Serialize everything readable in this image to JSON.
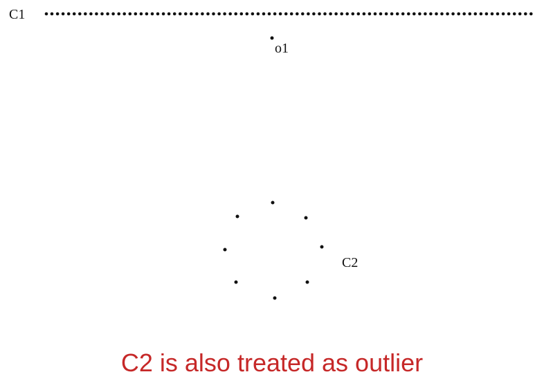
{
  "labels": {
    "c1": "C1",
    "o1": "o1",
    "c2": "C2"
  },
  "caption": "C2 is also treated as outlier",
  "colors": {
    "points": "#111111",
    "text": "#111111",
    "caption": "#c62828"
  }
}
